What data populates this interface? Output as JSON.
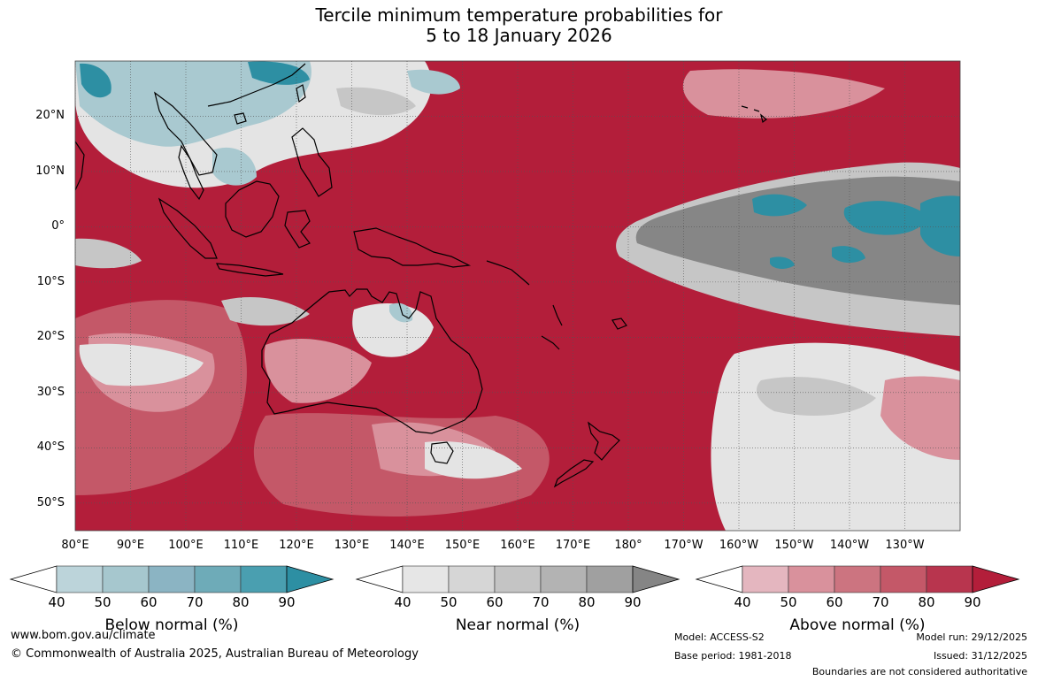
{
  "title": {
    "line1": "Tercile minimum temperature probabilities for",
    "line2": "5 to 18 January 2026"
  },
  "map": {
    "lat_labels": [
      "20°N",
      "10°N",
      "0°",
      "10°S",
      "20°S",
      "30°S",
      "40°S",
      "50°S"
    ],
    "lon_labels": [
      "80°E",
      "90°E",
      "100°E",
      "110°E",
      "120°E",
      "130°E",
      "140°E",
      "150°E",
      "160°E",
      "170°E",
      "180°",
      "170°W",
      "160°W",
      "150°W",
      "140°W",
      "130°W"
    ],
    "extent": {
      "lon_min": 80,
      "lon_max": 240,
      "lat_min": -55,
      "lat_max": 30
    }
  },
  "colorbars": [
    {
      "title": "Below normal (%)",
      "ticks": [
        "40",
        "50",
        "60",
        "70",
        "80",
        "90"
      ],
      "colors": [
        "#ffffff",
        "#bcd4da",
        "#a6c7ce",
        "#8bb4c3",
        "#6eabb8",
        "#4a9fb0",
        "#2d8fa3"
      ]
    },
    {
      "title": "Near normal (%)",
      "ticks": [
        "40",
        "50",
        "60",
        "70",
        "80",
        "90"
      ],
      "colors": [
        "#ffffff",
        "#e6e6e6",
        "#d6d6d6",
        "#c4c4c4",
        "#b3b3b3",
        "#a0a0a0",
        "#858585"
      ]
    },
    {
      "title": "Above normal (%)",
      "ticks": [
        "40",
        "50",
        "60",
        "70",
        "80",
        "90"
      ],
      "colors": [
        "#ffffff",
        "#e4b6bf",
        "#d9919c",
        "#cc7480",
        "#c45868",
        "#b8354e",
        "#b31e3a"
      ]
    }
  ],
  "footer": {
    "url": "www.bom.gov.au/climate",
    "copyright": "© Commonwealth of Australia 2025, Australian Bureau of Meteorology",
    "model": "Model: ACCESS-S2",
    "base_period": "Base period: 1981-2018",
    "model_run": "Model run: 29/12/2025",
    "issued": "Issued: 31/12/2025",
    "disclaimer": "Boundaries are not considered authoritative"
  },
  "palette": {
    "above_strong": "#b31e3a",
    "above_mid": "#c45868",
    "above_light": "#d9919c",
    "near_light": "#e4e4e4",
    "near_mid": "#c6c6c6",
    "near_dark": "#868686",
    "below_light": "#a9c9d0",
    "below_strong": "#2d8fa3",
    "white": "#ffffff"
  }
}
